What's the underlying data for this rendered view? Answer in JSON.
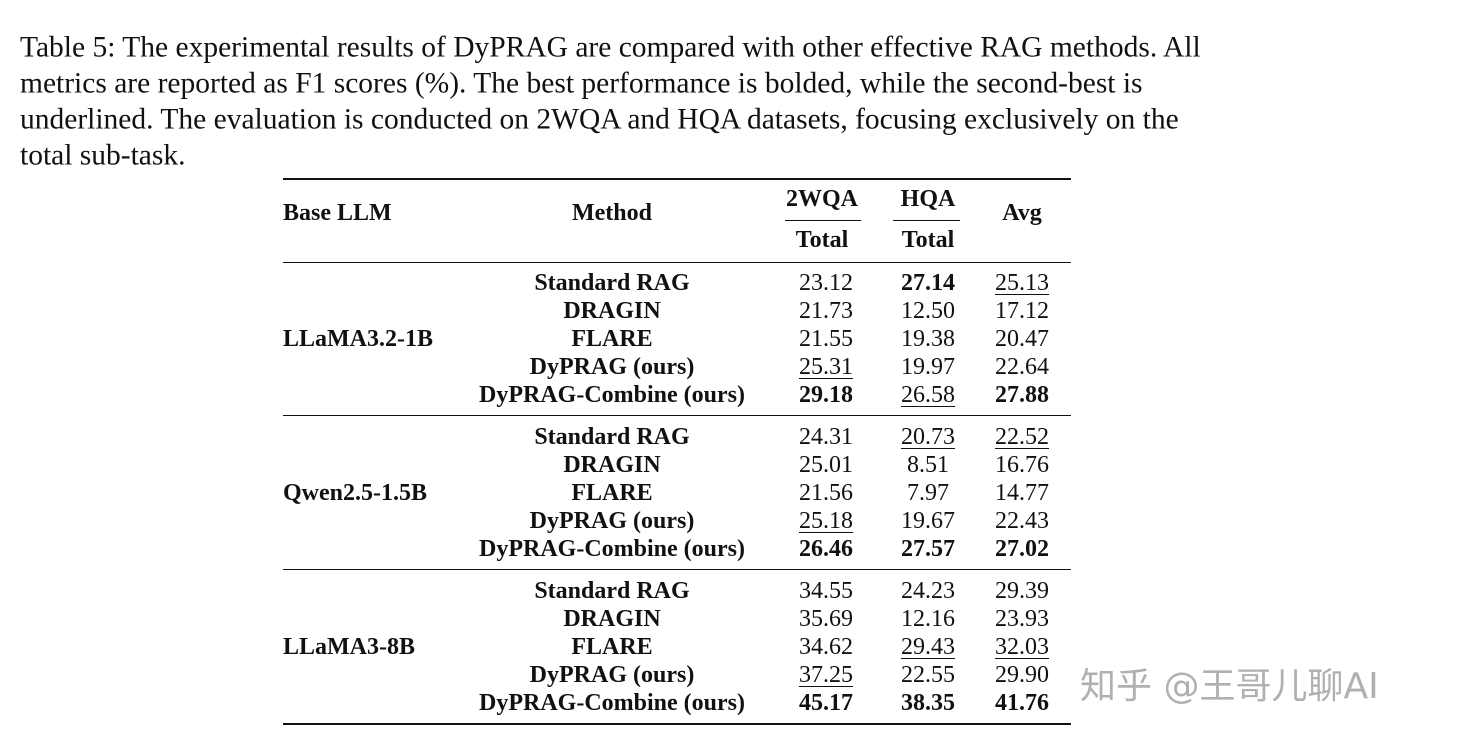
{
  "caption": [
    "Table 5: The experimental results of DyPRAG are compared with other effective RAG methods. All",
    "metrics are reported as F1 scores (%).  The best performance is bolded, while the second-best is",
    "underlined. The evaluation is conducted on 2WQA and HQA datasets, focusing exclusively on the",
    "total sub-task."
  ],
  "table": {
    "headers": {
      "base_llm": "Base LLM",
      "method": "Method",
      "datasets": [
        "2WQA",
        "HQA"
      ],
      "sub": [
        "Total",
        "Total"
      ],
      "avg": "Avg"
    },
    "groups": [
      {
        "base_llm": "LLaMA3.2-1B",
        "rows": [
          {
            "method": "Standard RAG",
            "values": [
              "23.12",
              "27.14",
              "25.13"
            ],
            "bold": [
              false,
              true,
              false
            ],
            "underline": [
              false,
              false,
              true
            ]
          },
          {
            "method": "DRAGIN",
            "values": [
              "21.73",
              "12.50",
              "17.12"
            ],
            "bold": [
              false,
              false,
              false
            ],
            "underline": [
              false,
              false,
              false
            ]
          },
          {
            "method": "FLARE",
            "values": [
              "21.55",
              "19.38",
              "20.47"
            ],
            "bold": [
              false,
              false,
              false
            ],
            "underline": [
              false,
              false,
              false
            ]
          },
          {
            "method": "DyPRAG (ours)",
            "values": [
              "25.31",
              "19.97",
              "22.64"
            ],
            "bold": [
              false,
              false,
              false
            ],
            "underline": [
              true,
              false,
              false
            ]
          },
          {
            "method": "DyPRAG-Combine (ours)",
            "values": [
              "29.18",
              "26.58",
              "27.88"
            ],
            "bold": [
              true,
              false,
              true
            ],
            "underline": [
              false,
              true,
              false
            ]
          }
        ]
      },
      {
        "base_llm": "Qwen2.5-1.5B",
        "rows": [
          {
            "method": "Standard RAG",
            "values": [
              "24.31",
              "20.73",
              "22.52"
            ],
            "bold": [
              false,
              false,
              false
            ],
            "underline": [
              false,
              true,
              true
            ]
          },
          {
            "method": "DRAGIN",
            "values": [
              "25.01",
              "8.51",
              "16.76"
            ],
            "bold": [
              false,
              false,
              false
            ],
            "underline": [
              false,
              false,
              false
            ]
          },
          {
            "method": "FLARE",
            "values": [
              "21.56",
              "7.97",
              "14.77"
            ],
            "bold": [
              false,
              false,
              false
            ],
            "underline": [
              false,
              false,
              false
            ]
          },
          {
            "method": "DyPRAG (ours)",
            "values": [
              "25.18",
              "19.67",
              "22.43"
            ],
            "bold": [
              false,
              false,
              false
            ],
            "underline": [
              true,
              false,
              false
            ]
          },
          {
            "method": "DyPRAG-Combine (ours)",
            "values": [
              "26.46",
              "27.57",
              "27.02"
            ],
            "bold": [
              true,
              true,
              true
            ],
            "underline": [
              false,
              false,
              false
            ]
          }
        ]
      },
      {
        "base_llm": "LLaMA3-8B",
        "rows": [
          {
            "method": "Standard RAG",
            "values": [
              "34.55",
              "24.23",
              "29.39"
            ],
            "bold": [
              false,
              false,
              false
            ],
            "underline": [
              false,
              false,
              false
            ]
          },
          {
            "method": "DRAGIN",
            "values": [
              "35.69",
              "12.16",
              "23.93"
            ],
            "bold": [
              false,
              false,
              false
            ],
            "underline": [
              false,
              false,
              false
            ]
          },
          {
            "method": "FLARE",
            "values": [
              "34.62",
              "29.43",
              "32.03"
            ],
            "bold": [
              false,
              false,
              false
            ],
            "underline": [
              false,
              true,
              true
            ]
          },
          {
            "method": "DyPRAG (ours)",
            "values": [
              "37.25",
              "22.55",
              "29.90"
            ],
            "bold": [
              false,
              false,
              false
            ],
            "underline": [
              true,
              false,
              false
            ]
          },
          {
            "method": "DyPRAG-Combine (ours)",
            "values": [
              "45.17",
              "38.35",
              "41.76"
            ],
            "bold": [
              true,
              true,
              true
            ],
            "underline": [
              false,
              false,
              false
            ]
          }
        ]
      }
    ]
  },
  "watermark": "知乎 @王哥儿聊AI"
}
